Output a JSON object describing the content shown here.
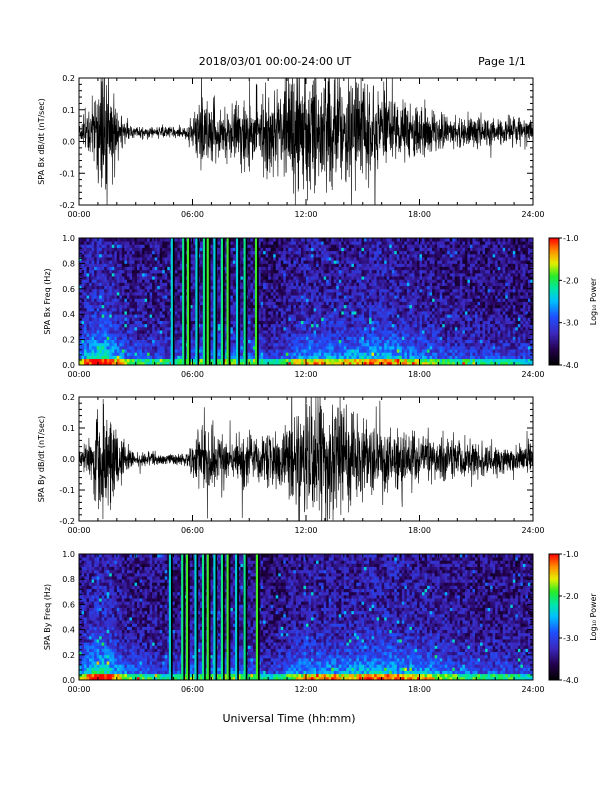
{
  "header": {
    "title": "2018/03/01   00:00-24:00 UT",
    "page": "Page 1/1"
  },
  "footer": {
    "xlabel": "Universal Time (hh:mm)"
  },
  "colorbar": {
    "label": "Log₁₀ Power",
    "ticks": [
      "-1.0",
      "-2.0",
      "-3.0",
      "-4.0"
    ]
  },
  "colors": {
    "trace": "#000000",
    "background": "#ffffff",
    "spectrogram_floor": "#000000"
  },
  "chart_data": [
    {
      "type": "line",
      "ylabel": "SPA Bx dB/dt (nT/sec)",
      "xlim": [
        0,
        24
      ],
      "ylim": [
        -0.2,
        0.2
      ],
      "x_ticks": [
        "00:00",
        "06:00",
        "12:00",
        "18:00",
        "24:00"
      ],
      "y_ticks": [
        "-0.2",
        "-0.1",
        "0.0",
        "0.1",
        "0.2"
      ],
      "activity": [
        [
          0.0,
          0.04
        ],
        [
          0.5,
          0.08
        ],
        [
          1.0,
          0.2
        ],
        [
          1.5,
          0.26
        ],
        [
          2.0,
          0.12
        ],
        [
          2.5,
          0.04
        ],
        [
          3.0,
          0.025
        ],
        [
          4.0,
          0.025
        ],
        [
          5.0,
          0.02
        ],
        [
          5.5,
          0.02
        ],
        [
          6.0,
          0.06
        ],
        [
          6.5,
          0.14
        ],
        [
          7.0,
          0.12
        ],
        [
          8.0,
          0.11
        ],
        [
          9.0,
          0.14
        ],
        [
          10.0,
          0.16
        ],
        [
          11.0,
          0.2
        ],
        [
          12.0,
          0.22
        ],
        [
          13.0,
          0.22
        ],
        [
          14.0,
          0.2
        ],
        [
          15.0,
          0.22
        ],
        [
          16.0,
          0.16
        ],
        [
          17.0,
          0.12
        ],
        [
          18.0,
          0.1
        ],
        [
          19.0,
          0.08
        ],
        [
          20.0,
          0.06
        ],
        [
          21.0,
          0.06
        ],
        [
          22.0,
          0.05
        ],
        [
          23.0,
          0.06
        ],
        [
          24.0,
          0.05
        ]
      ],
      "mean_offset": 0.03
    },
    {
      "type": "heatmap",
      "ylabel": "SPA Bx Freq (Hz)",
      "xlim": [
        0,
        24
      ],
      "ylim": [
        0,
        1
      ],
      "zlim": [
        -4,
        -1
      ],
      "x_ticks": [
        "00:00",
        "06:00",
        "12:00",
        "18:00",
        "24:00"
      ],
      "y_ticks": [
        "0.0",
        "0.2",
        "0.4",
        "0.6",
        "0.8",
        "1.0"
      ],
      "colorbar_label": "Log₁₀ Power",
      "colorbar_ticks": [
        "-1.0",
        "-2.0",
        "-3.0",
        "-4.0"
      ],
      "activity": [
        [
          0.0,
          0.6
        ],
        [
          1.0,
          1.0
        ],
        [
          1.5,
          0.9
        ],
        [
          2.5,
          0.55
        ],
        [
          3.5,
          0.45
        ],
        [
          5.0,
          0.4
        ],
        [
          6.0,
          0.5
        ],
        [
          7.5,
          0.55
        ],
        [
          9.5,
          0.45
        ],
        [
          10.0,
          0.3
        ],
        [
          11.0,
          0.5
        ],
        [
          12.0,
          0.7
        ],
        [
          13.0,
          0.7
        ],
        [
          14.0,
          0.65
        ],
        [
          15.0,
          0.75
        ],
        [
          16.0,
          0.8
        ],
        [
          17.0,
          0.7
        ],
        [
          18.0,
          0.6
        ],
        [
          19.0,
          0.5
        ],
        [
          20.0,
          0.45
        ],
        [
          22.0,
          0.4
        ],
        [
          24.0,
          0.35
        ]
      ],
      "gap_stripes": [
        4.85,
        5.45,
        5.7,
        6.15,
        6.55,
        6.75,
        7.1,
        7.5,
        7.8,
        8.3,
        8.7,
        9.3
      ]
    },
    {
      "type": "line",
      "ylabel": "SPA By dB/dt (nT/sec)",
      "xlim": [
        0,
        24
      ],
      "ylim": [
        -0.2,
        0.2
      ],
      "x_ticks": [
        "00:00",
        "06:00",
        "12:00",
        "18:00",
        "24:00"
      ],
      "y_ticks": [
        "-0.2",
        "-0.1",
        "0.0",
        "0.1",
        "0.2"
      ],
      "activity": [
        [
          0.0,
          0.03
        ],
        [
          0.5,
          0.06
        ],
        [
          1.0,
          0.2
        ],
        [
          1.5,
          0.24
        ],
        [
          2.0,
          0.12
        ],
        [
          2.5,
          0.05
        ],
        [
          3.0,
          0.03
        ],
        [
          4.0,
          0.025
        ],
        [
          5.0,
          0.02
        ],
        [
          5.5,
          0.03
        ],
        [
          6.0,
          0.06
        ],
        [
          6.5,
          0.14
        ],
        [
          7.0,
          0.12
        ],
        [
          8.0,
          0.09
        ],
        [
          9.0,
          0.1
        ],
        [
          10.0,
          0.1
        ],
        [
          11.0,
          0.14
        ],
        [
          12.0,
          0.24
        ],
        [
          13.0,
          0.24
        ],
        [
          14.0,
          0.22
        ],
        [
          15.0,
          0.15
        ],
        [
          16.0,
          0.12
        ],
        [
          17.0,
          0.12
        ],
        [
          18.0,
          0.1
        ],
        [
          19.0,
          0.09
        ],
        [
          20.0,
          0.08
        ],
        [
          21.0,
          0.07
        ],
        [
          22.0,
          0.06
        ],
        [
          23.0,
          0.06
        ],
        [
          24.0,
          0.05
        ]
      ],
      "mean_offset": 0.0
    },
    {
      "type": "heatmap",
      "ylabel": "SPA By Freq (Hz)",
      "xlim": [
        0,
        24
      ],
      "ylim": [
        0,
        1
      ],
      "zlim": [
        -4,
        -1
      ],
      "x_ticks": [
        "00:00",
        "06:00",
        "12:00",
        "18:00",
        "24:00"
      ],
      "y_ticks": [
        "0.0",
        "0.2",
        "0.4",
        "0.6",
        "0.8",
        "1.0"
      ],
      "colorbar_label": "Log₁₀ Power",
      "colorbar_ticks": [
        "-1.0",
        "-2.0",
        "-3.0",
        "-4.0"
      ],
      "activity": [
        [
          0.0,
          0.6
        ],
        [
          1.0,
          1.0
        ],
        [
          1.5,
          0.9
        ],
        [
          2.5,
          0.55
        ],
        [
          3.5,
          0.45
        ],
        [
          5.0,
          0.4
        ],
        [
          6.0,
          0.5
        ],
        [
          7.5,
          0.55
        ],
        [
          9.5,
          0.45
        ],
        [
          10.0,
          0.3
        ],
        [
          11.0,
          0.5
        ],
        [
          12.0,
          0.7
        ],
        [
          13.0,
          0.7
        ],
        [
          14.0,
          0.65
        ],
        [
          15.0,
          0.75
        ],
        [
          16.0,
          0.8
        ],
        [
          17.0,
          0.75
        ],
        [
          18.0,
          0.7
        ],
        [
          19.0,
          0.6
        ],
        [
          20.0,
          0.5
        ],
        [
          22.0,
          0.45
        ],
        [
          24.0,
          0.4
        ]
      ],
      "gap_stripes": [
        4.75,
        5.4,
        5.65,
        6.1,
        6.5,
        6.75,
        7.1,
        7.5,
        7.8,
        8.25,
        8.7,
        9.35
      ]
    }
  ]
}
